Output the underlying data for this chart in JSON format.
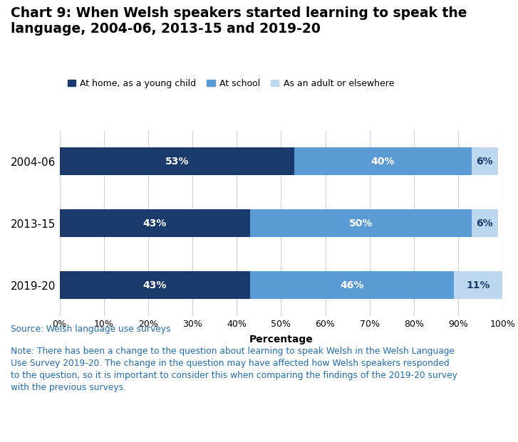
{
  "title": "Chart 9: When Welsh speakers started learning to speak the\nlanguage, 2004-06, 2013-15 and 2019-20",
  "categories": [
    "2004-06",
    "2013-15",
    "2019-20"
  ],
  "series": [
    {
      "label": "At home, as a young child",
      "values": [
        53,
        43,
        43
      ],
      "color": "#1a3a6b"
    },
    {
      "label": "At school",
      "values": [
        40,
        50,
        46
      ],
      "color": "#5b9bd5"
    },
    {
      "label": "As an adult or elsewhere",
      "values": [
        6,
        6,
        11
      ],
      "color": "#bdd7ee"
    }
  ],
  "xlabel": "Percentage",
  "xlim": [
    0,
    100
  ],
  "xticks": [
    0,
    10,
    20,
    30,
    40,
    50,
    60,
    70,
    80,
    90,
    100
  ],
  "xtick_labels": [
    "0%",
    "10%",
    "20%",
    "30%",
    "40%",
    "50%",
    "60%",
    "70%",
    "80%",
    "90%",
    "100%"
  ],
  "bar_label_color_dark": "#ffffff",
  "bar_label_color_light": "#1a3a6b",
  "source_text": "Source: Welsh language use surveys",
  "source_color": "#1f6cb0",
  "note_text": "Note: There has been a change to the question about learning to speak Welsh in the Welsh Language\nUse Survey 2019-20. The change in the question may have affected how Welsh speakers responded\nto the question, so it is important to consider this when comparing the findings of the 2019-20 survey\nwith the previous surveys.",
  "note_color": "#1f6cb0",
  "background_color": "#ffffff",
  "grid_color": "#d0d0d0",
  "title_fontsize": 13.5,
  "axis_fontsize": 9,
  "label_fontsize": 10,
  "legend_fontsize": 9,
  "bar_height": 0.45
}
